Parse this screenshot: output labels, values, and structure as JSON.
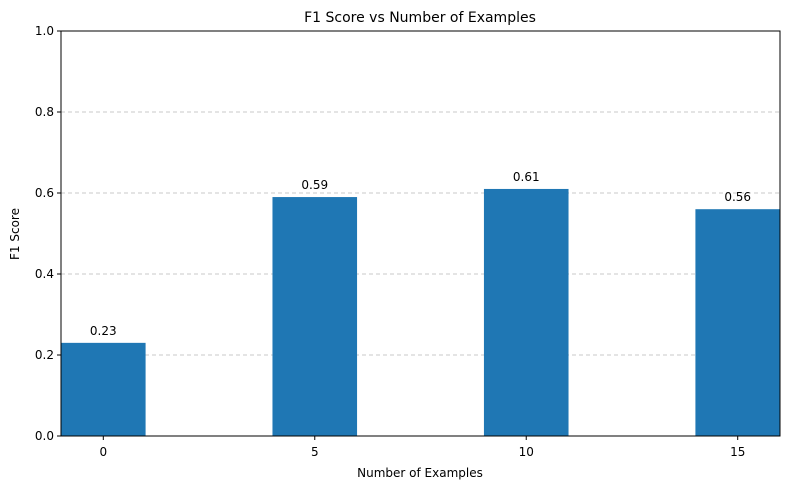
{
  "chart_data": {
    "type": "bar",
    "title": "F1 Score vs Number of Examples",
    "xlabel": "Number of Examples",
    "ylabel": "F1 Score",
    "categories": [
      "0",
      "5",
      "10",
      "15"
    ],
    "x": [
      0,
      5,
      10,
      15
    ],
    "values": [
      0.23,
      0.59,
      0.61,
      0.56
    ],
    "data_labels": [
      "0.23",
      "0.59",
      "0.61",
      "0.56"
    ],
    "xlim": [
      -1,
      16
    ],
    "ylim": [
      0,
      1.0
    ],
    "bar_width": 2,
    "yticks": [
      0.0,
      0.2,
      0.4,
      0.6,
      0.8,
      1.0
    ],
    "ytick_labels": [
      "0.0",
      "0.2",
      "0.4",
      "0.6",
      "0.8",
      "1.0"
    ],
    "grid": "y-dashed",
    "bar_color": "#1f77b4",
    "grid_color": "#c8c8c8"
  }
}
